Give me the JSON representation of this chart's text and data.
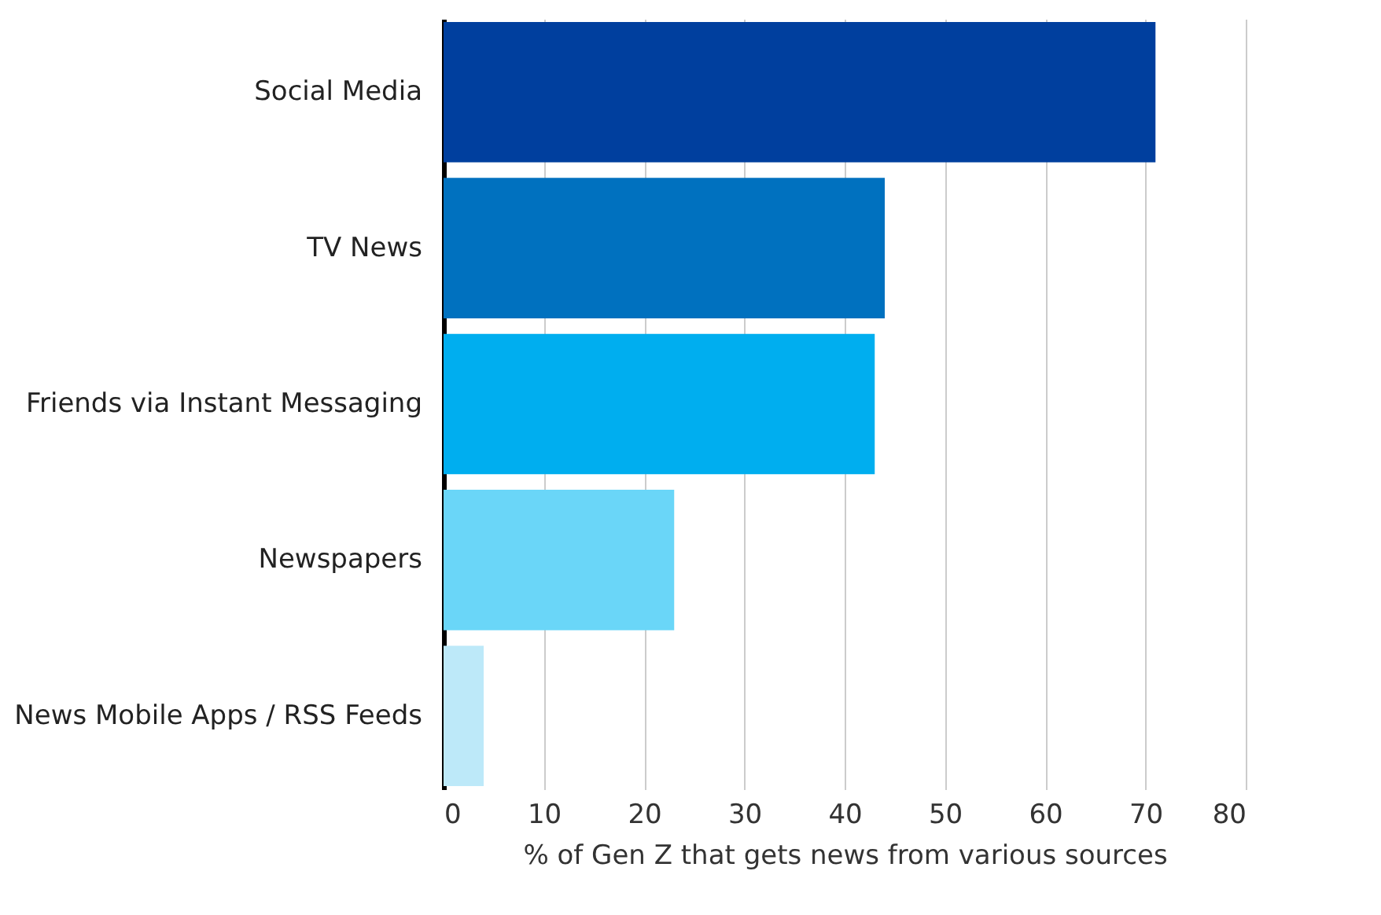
{
  "chart_data": {
    "type": "bar",
    "orientation": "horizontal",
    "xlabel": "% of Gen Z that gets news from various sources",
    "categories": [
      "Social Media",
      "TV News",
      "Friends via Instant Messaging",
      "Newspapers",
      "News Mobile Apps / RSS Feeds"
    ],
    "values": [
      71,
      44,
      43,
      23,
      4
    ],
    "colors": [
      "#003f9e",
      "#0071bf",
      "#00aeef",
      "#6ad6f8",
      "#bde9f9"
    ],
    "xlim": [
      0,
      80
    ],
    "xticks": [
      0,
      10,
      20,
      30,
      40,
      50,
      60,
      70,
      80
    ],
    "grid": "x"
  }
}
